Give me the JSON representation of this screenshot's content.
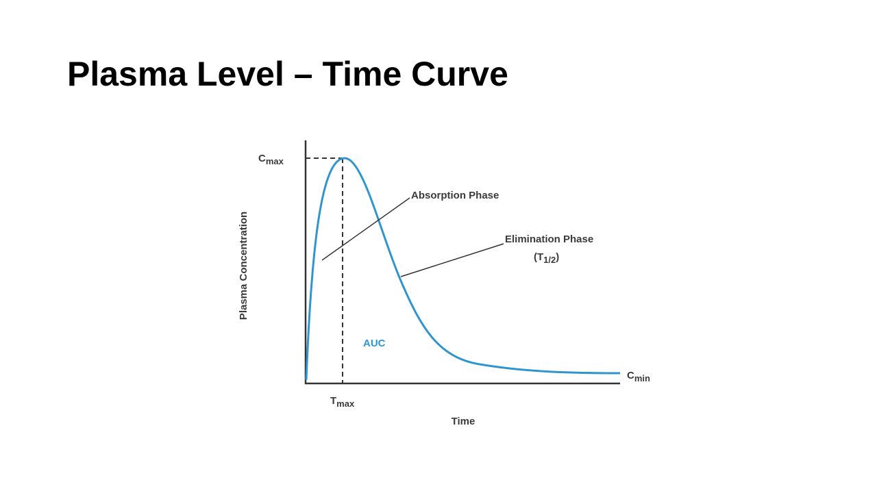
{
  "header": {
    "title": "Plasma Level – Time Curve"
  },
  "diagram": {
    "y_axis_label": "Plasma Concentration",
    "x_axis_label": "Time",
    "peak_concentration": {
      "base": "C",
      "sub": "max"
    },
    "peak_time": {
      "base": "T",
      "sub": "max"
    },
    "min_concentration": {
      "base": "C",
      "sub": "min"
    },
    "absorption_label": "Absorption Phase",
    "elimination_label": "Elimination Phase",
    "half_life": {
      "open": "(",
      "base": "T",
      "sub": "1/2",
      "close": ")"
    },
    "area_label": "AUC"
  }
}
